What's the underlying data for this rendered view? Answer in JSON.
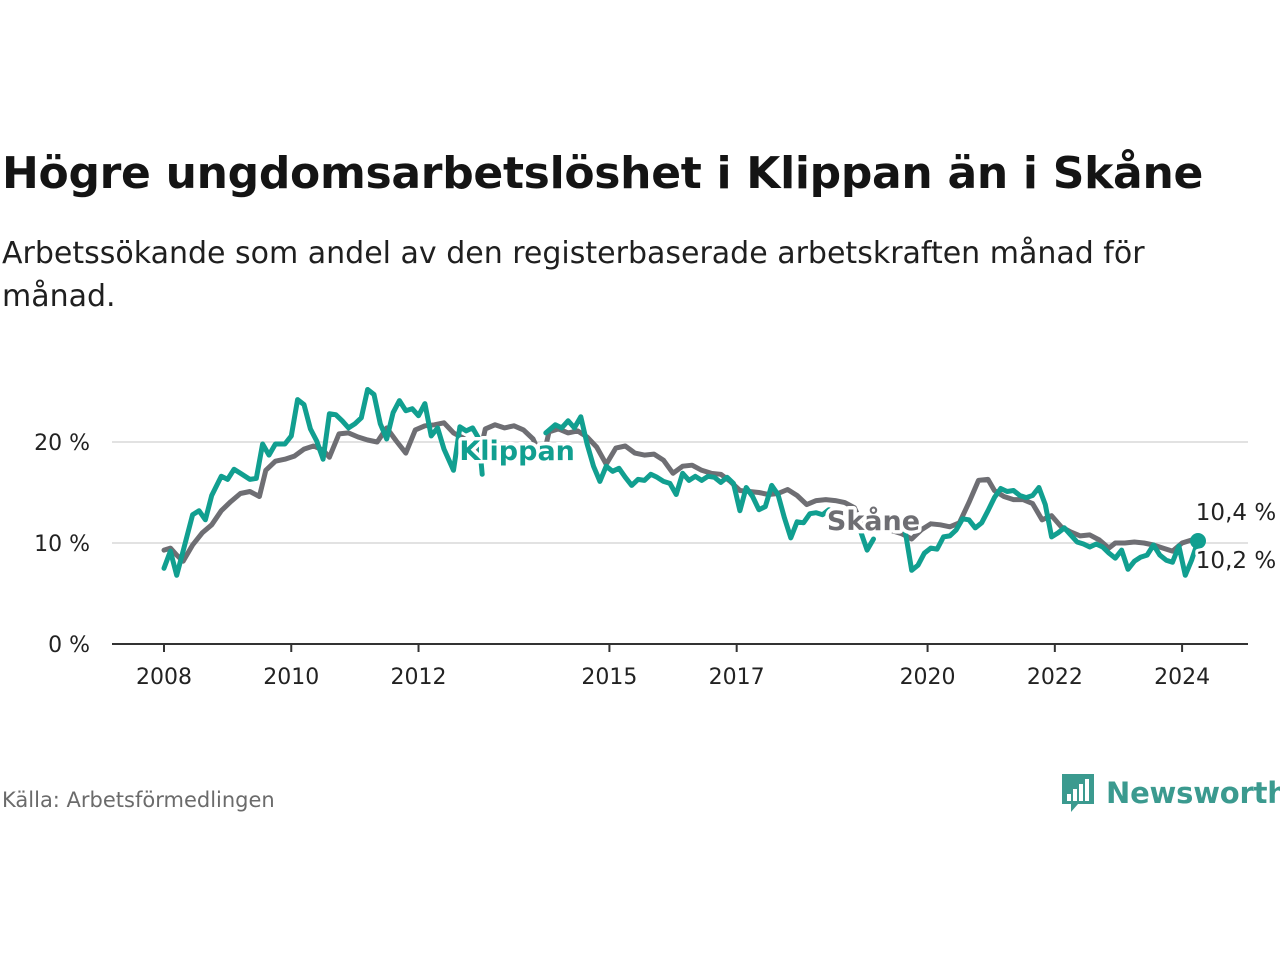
{
  "title": "Högre ungdomsarbetslöshet i Klippan än i Skåne",
  "subtitle": "Arbetssökande som andel av den registerbaserade arbetskraften månad för månad.",
  "source": "Källa: Arbetsförmedlingen",
  "brand": {
    "name": "Newsworthy",
    "icon": "newsworthy-logo-icon",
    "color": "#3b9a8f"
  },
  "chart_data": {
    "type": "line",
    "title": "Högre ungdomsarbetslöshet i Klippan än i Skåne",
    "xlabel": "",
    "ylabel": "",
    "xlim": [
      2008,
      2024.25
    ],
    "ylim": [
      0,
      27
    ],
    "y_ticks": [
      0,
      10,
      20
    ],
    "y_tick_labels": [
      "0 %",
      "10 %",
      "20 %"
    ],
    "x_ticks": [
      2008,
      2010,
      2012,
      2015,
      2017,
      2020,
      2022,
      2024
    ],
    "x_tick_labels": [
      "2008",
      "2010",
      "2012",
      "2015",
      "2017",
      "2020",
      "2022",
      "2024"
    ],
    "grid": true,
    "legend": "direct labels on lines",
    "series": [
      {
        "name": "Skåne",
        "color": "#6e6e73",
        "points": [
          [
            2008.0,
            9.3
          ],
          [
            2008.1,
            9.5
          ],
          [
            2008.2,
            8.8
          ],
          [
            2008.3,
            8.2
          ],
          [
            2008.45,
            9.8
          ],
          [
            2008.6,
            11.0
          ],
          [
            2008.75,
            11.8
          ],
          [
            2008.9,
            13.2
          ],
          [
            2009.05,
            14.1
          ],
          [
            2009.2,
            14.9
          ],
          [
            2009.35,
            15.1
          ],
          [
            2009.5,
            14.6
          ],
          [
            2009.6,
            17.2
          ],
          [
            2009.75,
            18.1
          ],
          [
            2009.9,
            18.3
          ],
          [
            2010.05,
            18.6
          ],
          [
            2010.2,
            19.3
          ],
          [
            2010.35,
            19.6
          ],
          [
            2010.5,
            19.2
          ],
          [
            2010.6,
            18.5
          ],
          [
            2010.75,
            20.8
          ],
          [
            2010.9,
            20.9
          ],
          [
            2011.05,
            20.5
          ],
          [
            2011.2,
            20.2
          ],
          [
            2011.35,
            20.0
          ],
          [
            2011.5,
            21.4
          ],
          [
            2011.65,
            20.1
          ],
          [
            2011.8,
            18.9
          ],
          [
            2011.95,
            21.2
          ],
          [
            2012.1,
            21.6
          ],
          [
            2012.25,
            21.7
          ],
          [
            2012.4,
            21.9
          ],
          [
            2012.55,
            20.9
          ],
          [
            2012.7,
            20.4
          ],
          [
            2012.85,
            19.8
          ],
          [
            2012.95,
            18.5
          ],
          [
            2013.05,
            21.3
          ],
          [
            2013.2,
            21.7
          ],
          [
            2013.35,
            21.4
          ],
          [
            2013.5,
            21.6
          ],
          [
            2013.65,
            21.2
          ],
          [
            2013.8,
            20.3
          ],
          [
            2013.95,
            18.2
          ],
          [
            2014.05,
            21.0
          ],
          [
            2014.2,
            21.3
          ],
          [
            2014.35,
            20.9
          ],
          [
            2014.5,
            21.1
          ],
          [
            2014.65,
            20.5
          ],
          [
            2014.8,
            19.5
          ],
          [
            2014.95,
            17.8
          ],
          [
            2015.1,
            19.4
          ],
          [
            2015.25,
            19.6
          ],
          [
            2015.4,
            18.9
          ],
          [
            2015.55,
            18.7
          ],
          [
            2015.7,
            18.8
          ],
          [
            2015.85,
            18.2
          ],
          [
            2016.0,
            16.9
          ],
          [
            2016.15,
            17.6
          ],
          [
            2016.3,
            17.7
          ],
          [
            2016.45,
            17.2
          ],
          [
            2016.6,
            16.9
          ],
          [
            2016.75,
            16.8
          ],
          [
            2016.9,
            16.1
          ],
          [
            2017.05,
            15.2
          ],
          [
            2017.2,
            15.1
          ],
          [
            2017.35,
            15.0
          ],
          [
            2017.5,
            14.8
          ],
          [
            2017.65,
            14.9
          ],
          [
            2017.8,
            15.3
          ],
          [
            2017.95,
            14.7
          ],
          [
            2018.1,
            13.8
          ],
          [
            2018.25,
            14.2
          ],
          [
            2018.4,
            14.3
          ],
          [
            2018.55,
            14.2
          ],
          [
            2018.7,
            14.0
          ],
          [
            2018.85,
            13.5
          ],
          [
            2019.0,
            11.4
          ],
          [
            2019.15,
            11.9
          ],
          [
            2019.3,
            11.6
          ],
          [
            2019.45,
            11.2
          ],
          [
            2019.6,
            10.9
          ],
          [
            2019.75,
            10.4
          ],
          [
            2019.9,
            11.3
          ],
          [
            2020.05,
            11.9
          ],
          [
            2020.2,
            11.8
          ],
          [
            2020.35,
            11.6
          ],
          [
            2020.5,
            12.0
          ],
          [
            2020.65,
            14.0
          ],
          [
            2020.8,
            16.2
          ],
          [
            2020.95,
            16.3
          ],
          [
            2021.05,
            15.2
          ],
          [
            2021.2,
            14.6
          ],
          [
            2021.35,
            14.3
          ],
          [
            2021.5,
            14.3
          ],
          [
            2021.65,
            13.9
          ],
          [
            2021.8,
            12.3
          ],
          [
            2021.95,
            12.7
          ],
          [
            2022.1,
            11.6
          ],
          [
            2022.25,
            11.1
          ],
          [
            2022.4,
            10.7
          ],
          [
            2022.55,
            10.8
          ],
          [
            2022.7,
            10.3
          ],
          [
            2022.85,
            9.5
          ],
          [
            2022.95,
            10.0
          ],
          [
            2023.1,
            10.0
          ],
          [
            2023.25,
            10.1
          ],
          [
            2023.4,
            10.0
          ],
          [
            2023.55,
            9.8
          ],
          [
            2023.7,
            9.5
          ],
          [
            2023.85,
            9.2
          ],
          [
            2024.0,
            10.0
          ],
          [
            2024.15,
            10.3
          ],
          [
            2024.25,
            10.4
          ]
        ]
      },
      {
        "name": "Klippan",
        "color": "#119f90",
        "points": [
          [
            2008.0,
            7.5
          ],
          [
            2008.1,
            9.2
          ],
          [
            2008.2,
            6.8
          ],
          [
            2008.3,
            9.2
          ],
          [
            2008.45,
            12.8
          ],
          [
            2008.55,
            13.2
          ],
          [
            2008.65,
            12.3
          ],
          [
            2008.75,
            14.7
          ],
          [
            2008.9,
            16.6
          ],
          [
            2009.0,
            16.3
          ],
          [
            2009.1,
            17.3
          ],
          [
            2009.2,
            16.9
          ],
          [
            2009.35,
            16.3
          ],
          [
            2009.45,
            16.4
          ],
          [
            2009.55,
            19.8
          ],
          [
            2009.65,
            18.7
          ],
          [
            2009.75,
            19.8
          ],
          [
            2009.9,
            19.8
          ],
          [
            2010.0,
            20.6
          ],
          [
            2010.1,
            24.2
          ],
          [
            2010.2,
            23.7
          ],
          [
            2010.3,
            21.3
          ],
          [
            2010.4,
            20.1
          ],
          [
            2010.5,
            18.3
          ],
          [
            2010.6,
            22.8
          ],
          [
            2010.7,
            22.7
          ],
          [
            2010.8,
            22.1
          ],
          [
            2010.9,
            21.4
          ],
          [
            2011.0,
            21.8
          ],
          [
            2011.1,
            22.4
          ],
          [
            2011.2,
            25.2
          ],
          [
            2011.3,
            24.7
          ],
          [
            2011.4,
            21.8
          ],
          [
            2011.5,
            20.3
          ],
          [
            2011.6,
            22.9
          ],
          [
            2011.7,
            24.1
          ],
          [
            2011.8,
            23.1
          ],
          [
            2011.9,
            23.3
          ],
          [
            2012.0,
            22.6
          ],
          [
            2012.1,
            23.8
          ],
          [
            2012.2,
            20.6
          ],
          [
            2012.3,
            21.4
          ],
          [
            2012.4,
            19.3
          ],
          [
            2012.55,
            17.2
          ],
          [
            2012.65,
            21.5
          ],
          [
            2012.75,
            21.1
          ],
          [
            2012.85,
            21.4
          ],
          [
            2012.95,
            20.3
          ],
          [
            2013.0,
            16.8
          ],
          null,
          [
            2014.0,
            20.9
          ],
          [
            2014.15,
            21.7
          ],
          [
            2014.25,
            21.4
          ],
          [
            2014.35,
            22.1
          ],
          [
            2014.45,
            21.4
          ],
          [
            2014.55,
            22.5
          ],
          [
            2014.65,
            19.8
          ],
          [
            2014.75,
            17.6
          ],
          [
            2014.85,
            16.1
          ],
          [
            2014.95,
            17.6
          ],
          [
            2015.05,
            17.1
          ],
          [
            2015.15,
            17.4
          ],
          [
            2015.25,
            16.5
          ],
          [
            2015.35,
            15.7
          ],
          [
            2015.45,
            16.3
          ],
          [
            2015.55,
            16.2
          ],
          [
            2015.65,
            16.8
          ],
          [
            2015.75,
            16.5
          ],
          [
            2015.85,
            16.1
          ],
          [
            2015.95,
            15.9
          ],
          [
            2016.05,
            14.8
          ],
          [
            2016.15,
            16.9
          ],
          [
            2016.25,
            16.2
          ],
          [
            2016.35,
            16.6
          ],
          [
            2016.45,
            16.2
          ],
          [
            2016.55,
            16.6
          ],
          [
            2016.65,
            16.5
          ],
          [
            2016.75,
            16.0
          ],
          [
            2016.85,
            16.5
          ],
          [
            2016.95,
            15.9
          ],
          [
            2017.05,
            13.2
          ],
          [
            2017.15,
            15.5
          ],
          [
            2017.25,
            14.6
          ],
          [
            2017.35,
            13.3
          ],
          [
            2017.45,
            13.6
          ],
          [
            2017.55,
            15.7
          ],
          [
            2017.65,
            14.8
          ],
          [
            2017.75,
            12.5
          ],
          [
            2017.85,
            10.5
          ],
          [
            2017.95,
            12.1
          ],
          [
            2018.05,
            12.0
          ],
          [
            2018.15,
            12.9
          ],
          [
            2018.25,
            13.0
          ],
          [
            2018.35,
            12.8
          ],
          [
            2018.45,
            13.3
          ],
          null,
          [
            2018.95,
            11.1
          ],
          [
            2019.05,
            9.3
          ],
          [
            2019.15,
            10.4
          ],
          null,
          [
            2019.65,
            11.1
          ],
          [
            2019.75,
            7.3
          ],
          [
            2019.85,
            7.8
          ],
          [
            2019.95,
            9.0
          ],
          [
            2020.05,
            9.5
          ],
          [
            2020.15,
            9.4
          ],
          [
            2020.25,
            10.6
          ],
          [
            2020.35,
            10.7
          ],
          [
            2020.45,
            11.3
          ],
          [
            2020.55,
            12.4
          ],
          [
            2020.65,
            12.3
          ],
          [
            2020.75,
            11.5
          ],
          [
            2020.85,
            12.0
          ],
          [
            2020.95,
            13.2
          ],
          [
            2021.05,
            14.5
          ],
          [
            2021.15,
            15.4
          ],
          [
            2021.25,
            15.1
          ],
          [
            2021.35,
            15.2
          ],
          [
            2021.45,
            14.7
          ],
          [
            2021.55,
            14.5
          ],
          [
            2021.65,
            14.7
          ],
          [
            2021.75,
            15.5
          ],
          [
            2021.85,
            13.8
          ],
          [
            2021.95,
            10.6
          ],
          [
            2022.05,
            11.0
          ],
          [
            2022.15,
            11.5
          ],
          [
            2022.25,
            10.8
          ],
          [
            2022.35,
            10.1
          ],
          [
            2022.45,
            9.9
          ],
          [
            2022.55,
            9.6
          ],
          [
            2022.65,
            9.9
          ],
          [
            2022.75,
            9.6
          ],
          [
            2022.85,
            9.0
          ],
          [
            2022.95,
            8.5
          ],
          [
            2023.05,
            9.3
          ],
          [
            2023.15,
            7.4
          ],
          [
            2023.25,
            8.2
          ],
          [
            2023.35,
            8.6
          ],
          [
            2023.45,
            8.8
          ],
          [
            2023.55,
            9.8
          ],
          [
            2023.65,
            8.8
          ],
          [
            2023.75,
            8.3
          ],
          [
            2023.85,
            8.1
          ],
          [
            2023.95,
            9.7
          ],
          [
            2024.05,
            6.8
          ],
          [
            2024.15,
            8.3
          ],
          [
            2024.25,
            10.2
          ]
        ]
      }
    ],
    "annotations": [
      {
        "series": "Skåne",
        "text": "Skåne",
        "x": 2019.15,
        "y": 12.3
      },
      {
        "series": "Klippan",
        "text": "Klippan",
        "x": 2013.55,
        "y": 19.2
      },
      {
        "series": "Skåne",
        "text": "10,4 %",
        "x": 2024.25,
        "y": 10.4
      },
      {
        "series": "Klippan",
        "text": "10,2 %",
        "x": 2024.25,
        "y": 10.2
      }
    ],
    "end_point": {
      "series": "Klippan",
      "x": 2024.25,
      "y": 10.2
    }
  }
}
